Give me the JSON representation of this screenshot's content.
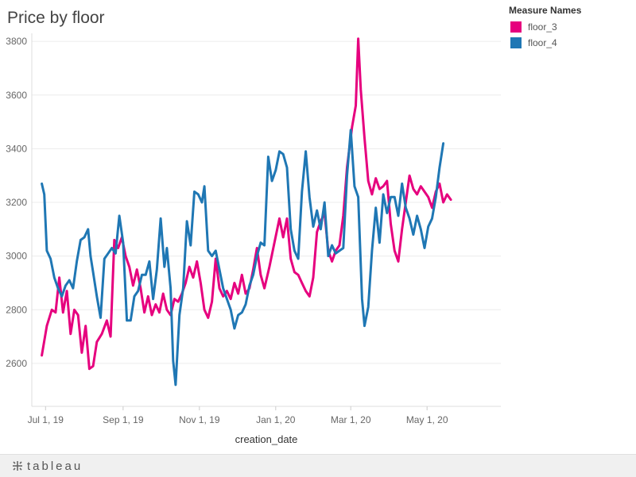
{
  "chart_data": {
    "type": "line",
    "title": "Price by floor",
    "xlabel": "creation_date",
    "ylabel": "",
    "x_ticks": [
      "Jul 1, 19",
      "Sep 1, 19",
      "Nov 1, 19",
      "Jan 1, 20",
      "Mar 1, 20",
      "May 1, 20"
    ],
    "x_tick_dates": [
      "2019-07-01",
      "2019-09-01",
      "2019-11-01",
      "2020-01-01",
      "2020-03-01",
      "2020-05-01"
    ],
    "x_range": [
      "2019-06-20",
      "2020-06-29"
    ],
    "y_ticks": [
      2600,
      2800,
      3000,
      3200,
      3400,
      3600,
      3800
    ],
    "ylim": [
      2440,
      3830
    ],
    "grid": "horizontal",
    "legend_title": "Measure Names",
    "legend_position": "top-right",
    "series": [
      {
        "name": "floor_3",
        "color": "#e6007e",
        "points": [
          [
            "2019-06-28",
            2630
          ],
          [
            "2019-07-02",
            2740
          ],
          [
            "2019-07-06",
            2800
          ],
          [
            "2019-07-09",
            2790
          ],
          [
            "2019-07-12",
            2920
          ],
          [
            "2019-07-15",
            2790
          ],
          [
            "2019-07-18",
            2870
          ],
          [
            "2019-07-21",
            2710
          ],
          [
            "2019-07-24",
            2800
          ],
          [
            "2019-07-27",
            2780
          ],
          [
            "2019-07-30",
            2640
          ],
          [
            "2019-08-02",
            2740
          ],
          [
            "2019-08-05",
            2580
          ],
          [
            "2019-08-08",
            2590
          ],
          [
            "2019-08-11",
            2680
          ],
          [
            "2019-08-15",
            2710
          ],
          [
            "2019-08-19",
            2760
          ],
          [
            "2019-08-22",
            2700
          ],
          [
            "2019-08-25",
            3060
          ],
          [
            "2019-08-28",
            3030
          ],
          [
            "2019-08-31",
            3070
          ],
          [
            "2019-09-03",
            3000
          ],
          [
            "2019-09-06",
            2960
          ],
          [
            "2019-09-09",
            2890
          ],
          [
            "2019-09-12",
            2950
          ],
          [
            "2019-09-15",
            2880
          ],
          [
            "2019-09-18",
            2790
          ],
          [
            "2019-09-21",
            2850
          ],
          [
            "2019-09-24",
            2780
          ],
          [
            "2019-09-27",
            2820
          ],
          [
            "2019-09-30",
            2790
          ],
          [
            "2019-10-03",
            2860
          ],
          [
            "2019-10-06",
            2800
          ],
          [
            "2019-10-09",
            2780
          ],
          [
            "2019-10-12",
            2840
          ],
          [
            "2019-10-15",
            2830
          ],
          [
            "2019-10-18",
            2860
          ],
          [
            "2019-10-21",
            2900
          ],
          [
            "2019-10-24",
            2960
          ],
          [
            "2019-10-27",
            2920
          ],
          [
            "2019-10-30",
            2980
          ],
          [
            "2019-11-02",
            2900
          ],
          [
            "2019-11-05",
            2800
          ],
          [
            "2019-11-08",
            2770
          ],
          [
            "2019-11-11",
            2830
          ],
          [
            "2019-11-14",
            2990
          ],
          [
            "2019-11-17",
            2880
          ],
          [
            "2019-11-20",
            2850
          ],
          [
            "2019-11-23",
            2870
          ],
          [
            "2019-11-26",
            2840
          ],
          [
            "2019-11-29",
            2900
          ],
          [
            "2019-12-02",
            2860
          ],
          [
            "2019-12-05",
            2930
          ],
          [
            "2019-12-08",
            2860
          ],
          [
            "2019-12-11",
            2880
          ],
          [
            "2019-12-14",
            2950
          ],
          [
            "2019-12-17",
            3030
          ],
          [
            "2019-12-20",
            2930
          ],
          [
            "2019-12-23",
            2880
          ],
          [
            "2019-12-27",
            2960
          ],
          [
            "2019-12-31",
            3050
          ],
          [
            "2020-01-04",
            3140
          ],
          [
            "2020-01-07",
            3070
          ],
          [
            "2020-01-10",
            3140
          ],
          [
            "2020-01-13",
            2990
          ],
          [
            "2020-01-16",
            2940
          ],
          [
            "2020-01-19",
            2930
          ],
          [
            "2020-01-22",
            2900
          ],
          [
            "2020-01-25",
            2870
          ],
          [
            "2020-01-28",
            2850
          ],
          [
            "2020-01-31",
            2920
          ],
          [
            "2020-02-03",
            3090
          ],
          [
            "2020-02-06",
            3130
          ],
          [
            "2020-02-09",
            3160
          ],
          [
            "2020-02-12",
            3020
          ],
          [
            "2020-02-15",
            2980
          ],
          [
            "2020-02-18",
            3020
          ],
          [
            "2020-02-21",
            3040
          ],
          [
            "2020-02-24",
            3150
          ],
          [
            "2020-02-27",
            3330
          ],
          [
            "2020-03-02",
            3480
          ],
          [
            "2020-03-05",
            3560
          ],
          [
            "2020-03-07",
            3810
          ],
          [
            "2020-03-09",
            3620
          ],
          [
            "2020-03-12",
            3440
          ],
          [
            "2020-03-15",
            3280
          ],
          [
            "2020-03-18",
            3230
          ],
          [
            "2020-03-21",
            3290
          ],
          [
            "2020-03-24",
            3250
          ],
          [
            "2020-03-27",
            3260
          ],
          [
            "2020-03-30",
            3280
          ],
          [
            "2020-04-02",
            3120
          ],
          [
            "2020-04-05",
            3020
          ],
          [
            "2020-04-08",
            2980
          ],
          [
            "2020-04-11",
            3100
          ],
          [
            "2020-04-14",
            3200
          ],
          [
            "2020-04-17",
            3300
          ],
          [
            "2020-04-20",
            3250
          ],
          [
            "2020-04-23",
            3230
          ],
          [
            "2020-04-26",
            3260
          ],
          [
            "2020-04-29",
            3240
          ],
          [
            "2020-05-02",
            3220
          ],
          [
            "2020-05-05",
            3180
          ],
          [
            "2020-05-08",
            3240
          ],
          [
            "2020-05-11",
            3270
          ],
          [
            "2020-05-14",
            3200
          ],
          [
            "2020-05-17",
            3230
          ],
          [
            "2020-05-20",
            3210
          ]
        ]
      },
      {
        "name": "floor_4",
        "color": "#1f77b4",
        "points": [
          [
            "2019-06-28",
            3270
          ],
          [
            "2019-06-30",
            3230
          ],
          [
            "2019-07-02",
            3020
          ],
          [
            "2019-07-05",
            2990
          ],
          [
            "2019-07-08",
            2920
          ],
          [
            "2019-07-11",
            2880
          ],
          [
            "2019-07-14",
            2850
          ],
          [
            "2019-07-17",
            2890
          ],
          [
            "2019-07-20",
            2910
          ],
          [
            "2019-07-23",
            2880
          ],
          [
            "2019-07-26",
            2980
          ],
          [
            "2019-07-29",
            3060
          ],
          [
            "2019-08-01",
            3070
          ],
          [
            "2019-08-04",
            3100
          ],
          [
            "2019-08-06",
            3000
          ],
          [
            "2019-08-08",
            2940
          ],
          [
            "2019-08-11",
            2850
          ],
          [
            "2019-08-14",
            2770
          ],
          [
            "2019-08-17",
            2990
          ],
          [
            "2019-08-20",
            3010
          ],
          [
            "2019-08-23",
            3030
          ],
          [
            "2019-08-26",
            3010
          ],
          [
            "2019-08-29",
            3150
          ],
          [
            "2019-09-01",
            3050
          ],
          [
            "2019-09-04",
            2760
          ],
          [
            "2019-09-07",
            2760
          ],
          [
            "2019-09-10",
            2850
          ],
          [
            "2019-09-13",
            2870
          ],
          [
            "2019-09-16",
            2930
          ],
          [
            "2019-09-19",
            2930
          ],
          [
            "2019-09-22",
            2980
          ],
          [
            "2019-09-25",
            2840
          ],
          [
            "2019-09-28",
            2950
          ],
          [
            "2019-10-01",
            3140
          ],
          [
            "2019-10-04",
            2960
          ],
          [
            "2019-10-06",
            3030
          ],
          [
            "2019-10-09",
            2880
          ],
          [
            "2019-10-11",
            2610
          ],
          [
            "2019-10-13",
            2520
          ],
          [
            "2019-10-16",
            2780
          ],
          [
            "2019-10-19",
            2880
          ],
          [
            "2019-10-22",
            3130
          ],
          [
            "2019-10-25",
            3040
          ],
          [
            "2019-10-28",
            3240
          ],
          [
            "2019-10-31",
            3230
          ],
          [
            "2019-11-03",
            3200
          ],
          [
            "2019-11-05",
            3260
          ],
          [
            "2019-11-08",
            3020
          ],
          [
            "2019-11-11",
            3000
          ],
          [
            "2019-11-14",
            3020
          ],
          [
            "2019-11-17",
            2950
          ],
          [
            "2019-11-20",
            2880
          ],
          [
            "2019-11-23",
            2840
          ],
          [
            "2019-11-26",
            2800
          ],
          [
            "2019-11-29",
            2730
          ],
          [
            "2019-12-02",
            2780
          ],
          [
            "2019-12-05",
            2790
          ],
          [
            "2019-12-08",
            2820
          ],
          [
            "2019-12-11",
            2890
          ],
          [
            "2019-12-14",
            2930
          ],
          [
            "2019-12-17",
            3000
          ],
          [
            "2019-12-20",
            3050
          ],
          [
            "2019-12-23",
            3040
          ],
          [
            "2019-12-26",
            3370
          ],
          [
            "2019-12-29",
            3280
          ],
          [
            "2020-01-01",
            3320
          ],
          [
            "2020-01-04",
            3390
          ],
          [
            "2020-01-07",
            3380
          ],
          [
            "2020-01-10",
            3330
          ],
          [
            "2020-01-13",
            3100
          ],
          [
            "2020-01-16",
            3020
          ],
          [
            "2020-01-19",
            2990
          ],
          [
            "2020-01-22",
            3240
          ],
          [
            "2020-01-25",
            3390
          ],
          [
            "2020-01-28",
            3220
          ],
          [
            "2020-01-31",
            3110
          ],
          [
            "2020-02-03",
            3170
          ],
          [
            "2020-02-06",
            3100
          ],
          [
            "2020-02-09",
            3200
          ],
          [
            "2020-02-12",
            3000
          ],
          [
            "2020-02-15",
            3040
          ],
          [
            "2020-02-18",
            3010
          ],
          [
            "2020-02-21",
            3020
          ],
          [
            "2020-02-24",
            3030
          ],
          [
            "2020-02-27",
            3300
          ],
          [
            "2020-03-01",
            3470
          ],
          [
            "2020-03-04",
            3260
          ],
          [
            "2020-03-07",
            3220
          ],
          [
            "2020-03-10",
            2840
          ],
          [
            "2020-03-12",
            2740
          ],
          [
            "2020-03-15",
            2810
          ],
          [
            "2020-03-18",
            3020
          ],
          [
            "2020-03-21",
            3180
          ],
          [
            "2020-03-24",
            3050
          ],
          [
            "2020-03-27",
            3230
          ],
          [
            "2020-03-30",
            3160
          ],
          [
            "2020-04-02",
            3220
          ],
          [
            "2020-04-05",
            3220
          ],
          [
            "2020-04-08",
            3150
          ],
          [
            "2020-04-11",
            3270
          ],
          [
            "2020-04-14",
            3180
          ],
          [
            "2020-04-17",
            3140
          ],
          [
            "2020-04-20",
            3080
          ],
          [
            "2020-04-23",
            3150
          ],
          [
            "2020-04-26",
            3100
          ],
          [
            "2020-04-29",
            3030
          ],
          [
            "2020-05-02",
            3110
          ],
          [
            "2020-05-05",
            3140
          ],
          [
            "2020-05-08",
            3220
          ],
          [
            "2020-05-11",
            3330
          ],
          [
            "2020-05-14",
            3420
          ]
        ]
      }
    ]
  },
  "footer": {
    "brand": "tableau"
  }
}
